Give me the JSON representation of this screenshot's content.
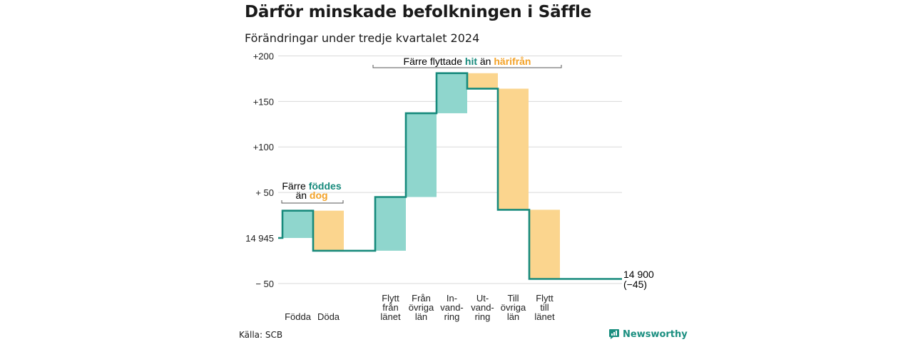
{
  "title": "Därför minskade befolkningen i Säffle",
  "subtitle": "Förändringar under tredje kvartalet 2024",
  "source": "Källa: SCB",
  "brand": "Newsworthy",
  "colors": {
    "in": "#8fd6cd",
    "out": "#fbd58e",
    "line": "#178a7c",
    "orange_text": "#f3a228",
    "grid": "#d9d9d9"
  },
  "annotations": {
    "births": {
      "prefix": "Färre ",
      "in_word": "föddes",
      "mid": "än ",
      "out_word": "dog"
    },
    "migration": {
      "prefix": "Färre flyttade ",
      "in_word": "hit",
      "mid": " än ",
      "out_word": "härifrån"
    },
    "end_value": "14 900",
    "end_change": "(−45)"
  },
  "chart_data": {
    "type": "waterfall",
    "title": "Därför minskade befolkningen i Säffle",
    "subtitle": "Förändringar under tredje kvartalet 2024",
    "start_population": 14945,
    "end_population": 14900,
    "net_change": -45,
    "ylim": [
      -55,
      200
    ],
    "y_ticks": [
      {
        "value": 200,
        "label": "+200"
      },
      {
        "value": 150,
        "label": "+150"
      },
      {
        "value": 100,
        "label": "+100"
      },
      {
        "value": 50,
        "label": "+ 50"
      },
      {
        "value": 0,
        "label": "14 945"
      },
      {
        "value": -50,
        "label": "− 50"
      }
    ],
    "grid": true,
    "steps": [
      {
        "category": "Födda",
        "label_lines": [
          "Födda"
        ],
        "change": 30,
        "direction": "in"
      },
      {
        "category": "Döda",
        "label_lines": [
          "Döda"
        ],
        "change": -44,
        "direction": "out"
      },
      {
        "category": "Flytt från länet",
        "label_lines": [
          "Flytt",
          "från",
          "länet"
        ],
        "change": 59,
        "direction": "in"
      },
      {
        "category": "Från övriga län",
        "label_lines": [
          "Från",
          "övriga",
          "län"
        ],
        "change": 92,
        "direction": "in"
      },
      {
        "category": "In-vandring",
        "label_lines": [
          "In-",
          "vand-",
          "ring"
        ],
        "change": 44,
        "direction": "in"
      },
      {
        "category": "Ut-vandring",
        "label_lines": [
          "Ut-",
          "vand-",
          "ring"
        ],
        "change": -17,
        "direction": "out"
      },
      {
        "category": "Till övriga län",
        "label_lines": [
          "Till",
          "övriga",
          "län"
        ],
        "change": -133,
        "direction": "out"
      },
      {
        "category": "Flytt till länet",
        "label_lines": [
          "Flytt",
          "till",
          "länet"
        ],
        "change": -76,
        "direction": "out"
      }
    ]
  }
}
